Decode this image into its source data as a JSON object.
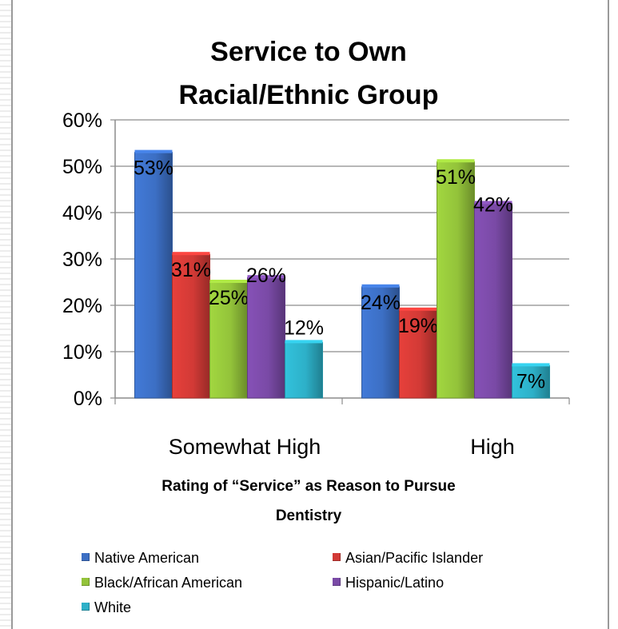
{
  "chart_data": {
    "type": "bar",
    "title": "Service to Own Racial/Ethnic Group",
    "xlabel": "Rating of “Service” as Reason to Pursue Dentistry",
    "ylabel": "",
    "categories": [
      "Somewhat High",
      "High"
    ],
    "ylim": [
      0,
      60
    ],
    "yticks": [
      "0%",
      "10%",
      "20%",
      "30%",
      "40%",
      "50%",
      "60%"
    ],
    "grid": true,
    "legend_position": "bottom",
    "series": [
      {
        "name": "Native American",
        "color": "#3c6fc4",
        "values": [
          53,
          24
        ],
        "labels": [
          "53%",
          "24%"
        ]
      },
      {
        "name": "Asian/Pacific Islander",
        "color": "#d23a36",
        "values": [
          31,
          19
        ],
        "labels": [
          "31%",
          "19%"
        ]
      },
      {
        "name": "Black/African American",
        "color": "#93c33a",
        "values": [
          25,
          51
        ],
        "labels": [
          "25%",
          "51%"
        ]
      },
      {
        "name": "Hispanic/Latino",
        "color": "#7a4aa6",
        "values": [
          26,
          42
        ],
        "labels": [
          "26%",
          "42%"
        ]
      },
      {
        "name": "White",
        "color": "#2db0c8",
        "values": [
          12,
          7
        ],
        "labels": [
          "12%",
          "7%"
        ]
      }
    ]
  }
}
